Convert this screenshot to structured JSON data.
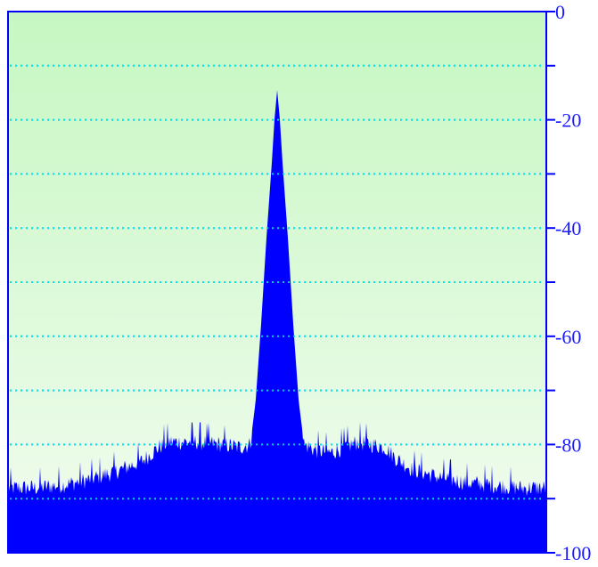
{
  "chart_data": {
    "type": "area",
    "title": "",
    "xlabel": "",
    "ylabel": "",
    "ylim": [
      -100,
      0
    ],
    "y_axis_side": "right",
    "y_ticks": [
      0,
      -20,
      -40,
      -60,
      -80,
      -100
    ],
    "y_tick_labels": [
      "0",
      "-20",
      "-40",
      "-60",
      "-80",
      "-100"
    ],
    "y_minor_ticks": [
      -10,
      -30,
      -50,
      -70,
      -90
    ],
    "grid": "horizontal dotted lines every 10 units",
    "legend": "none",
    "x_range": [
      0,
      1
    ],
    "series": [
      {
        "x": [
          0.0,
          0.05,
          0.1,
          0.15,
          0.2,
          0.25,
          0.28,
          0.3,
          0.35,
          0.4,
          0.43,
          0.45,
          0.46,
          0.47,
          0.48,
          0.49,
          0.495,
          0.5,
          0.505,
          0.51,
          0.52,
          0.53,
          0.54,
          0.55,
          0.57,
          0.6,
          0.65,
          0.7,
          0.72,
          0.75,
          0.8,
          0.85,
          0.9,
          0.95,
          1.0
        ],
        "y": [
          -88,
          -88,
          -87.5,
          -86.5,
          -85,
          -83,
          -80.5,
          -79.5,
          -79.5,
          -80,
          -80.5,
          -80,
          -72,
          -58,
          -42,
          -28,
          -20,
          -14.5,
          -20,
          -28,
          -42,
          -58,
          -72,
          -80,
          -81,
          -81.5,
          -79.5,
          -80.5,
          -82.5,
          -84.5,
          -86,
          -87,
          -87.5,
          -88,
          -88
        ]
      }
    ],
    "colors": {
      "fill": "#0000ff",
      "axis": "#0000ff",
      "grid": "#00e5ee",
      "background_top": "#c6f7c2",
      "background_bottom": "#f2fcef"
    }
  }
}
